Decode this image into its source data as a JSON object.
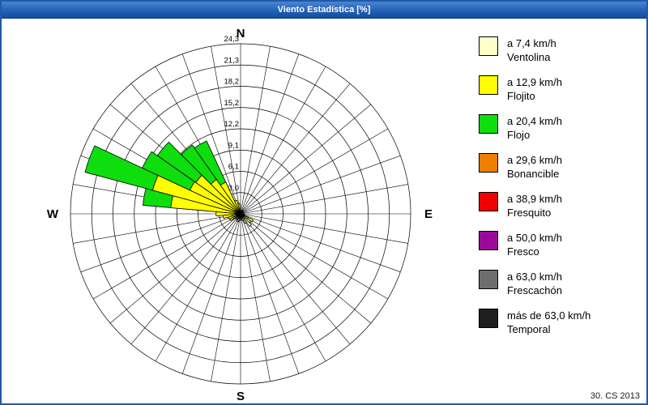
{
  "window": {
    "title": "Viento Estadística [%]",
    "footer": "30. CS 2013"
  },
  "compass": {
    "north": "N",
    "south": "S",
    "east": "E",
    "west": "W"
  },
  "chart_data": {
    "type": "wind-rose-polar-stacked-bar",
    "units": "%",
    "title": "Viento Estadística [%]",
    "max_radius": 24.3,
    "ring_values": [
      3.0,
      6.1,
      9.1,
      12.2,
      15.2,
      18.2,
      21.3,
      24.3
    ],
    "ring_labels": [
      "3,0",
      "6,1",
      "9,1",
      "12,2",
      "15,2",
      "18,2",
      "21,3",
      "24,3"
    ],
    "sector_count": 36,
    "sector_width_deg": 10,
    "grid": true,
    "legend_position": "right",
    "series_order": [
      "ventolina",
      "flojito",
      "flojo"
    ],
    "legend": [
      {
        "key": "ventolina",
        "speed": "a 7,4 km/h",
        "name": "Ventolina",
        "color": "#FFFFC8"
      },
      {
        "key": "flojito",
        "speed": "a 12,9 km/h",
        "name": "Flojito",
        "color": "#FFFF00"
      },
      {
        "key": "flojo",
        "speed": "a 20,4 km/h",
        "name": "Flojo",
        "color": "#0EDD0E"
      },
      {
        "key": "bonancible",
        "speed": "a 29,6 km/h",
        "name": "Bonancible",
        "color": "#EE7F00"
      },
      {
        "key": "fresquito",
        "speed": "a 38,9 km/h",
        "name": "Fresquito",
        "color": "#F00000"
      },
      {
        "key": "fresco",
        "speed": "a 50,0 km/h",
        "name": "Fresco",
        "color": "#9A0A9A"
      },
      {
        "key": "frescachon",
        "speed": "a 63,0 km/h",
        "name": "Frescachón",
        "color": "#6E6E6E"
      },
      {
        "key": "temporal",
        "speed": "más de 63,0 km/h",
        "name": "Temporal",
        "color": "#1E1E1E"
      }
    ],
    "petals": [
      {
        "bearing": 270,
        "ventolina": 0.5,
        "flojito": 3.0,
        "flojo": 0
      },
      {
        "bearing": 280,
        "ventolina": 0.8,
        "flojito": 9.2,
        "flojo": 4.0
      },
      {
        "bearing": 290,
        "ventolina": 1.0,
        "flojito": 12.0,
        "flojo": 10.0
      },
      {
        "bearing": 300,
        "ventolina": 0.8,
        "flojito": 7.2,
        "flojo": 7.5
      },
      {
        "bearing": 310,
        "ventolina": 0.8,
        "flojito": 7.0,
        "flojo": 6.7
      },
      {
        "bearing": 320,
        "ventolina": 0.6,
        "flojito": 5.4,
        "flojo": 6.0
      },
      {
        "bearing": 330,
        "ventolina": 0.5,
        "flojito": 4.5,
        "flojo": 6.5
      },
      {
        "bearing": 340,
        "ventolina": 0.6,
        "flojito": 1.4,
        "flojo": 0
      },
      {
        "bearing": 350,
        "ventolina": 0.8,
        "flojito": 0.7,
        "flojo": 0
      },
      {
        "bearing": 30,
        "ventolina": 0.6,
        "flojito": 0,
        "flojo": 0
      },
      {
        "bearing": 60,
        "ventolina": 0.5,
        "flojito": 0,
        "flojo": 0
      },
      {
        "bearing": 100,
        "ventolina": 0.6,
        "flojito": 0,
        "flojo": 0
      },
      {
        "bearing": 120,
        "ventolina": 1.2,
        "flojito": 0.8,
        "flojo": 0
      },
      {
        "bearing": 130,
        "ventolina": 1.8,
        "flojito": 0,
        "flojo": 0
      },
      {
        "bearing": 140,
        "ventolina": 2.2,
        "flojito": 0,
        "flojo": 0
      },
      {
        "bearing": 150,
        "ventolina": 1.5,
        "flojito": 0,
        "flojo": 0
      },
      {
        "bearing": 160,
        "ventolina": 1.0,
        "flojito": 0,
        "flojo": 0
      },
      {
        "bearing": 170,
        "ventolina": 0.8,
        "flojito": 0,
        "flojo": 0
      },
      {
        "bearing": 180,
        "ventolina": 0.8,
        "flojito": 0,
        "flojo": 0
      },
      {
        "bearing": 190,
        "ventolina": 1.0,
        "flojito": 0,
        "flojo": 0
      },
      {
        "bearing": 200,
        "ventolina": 1.2,
        "flojito": 0,
        "flojo": 0
      },
      {
        "bearing": 210,
        "ventolina": 0.8,
        "flojito": 0,
        "flojo": 0
      },
      {
        "bearing": 220,
        "ventolina": 1.0,
        "flojito": 0,
        "flojo": 0
      },
      {
        "bearing": 230,
        "ventolina": 0.8,
        "flojito": 0,
        "flojo": 0
      },
      {
        "bearing": 240,
        "ventolina": 1.2,
        "flojito": 0.5,
        "flojo": 0
      },
      {
        "bearing": 250,
        "ventolina": 1.0,
        "flojito": 0.8,
        "flojo": 0
      },
      {
        "bearing": 260,
        "ventolina": 1.2,
        "flojito": 1.3,
        "flojo": 0
      }
    ]
  }
}
